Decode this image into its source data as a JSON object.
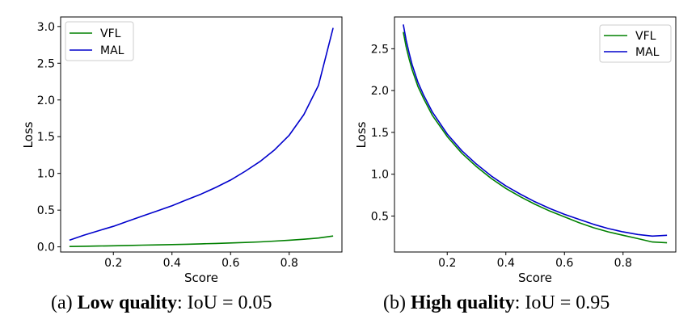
{
  "chart_data": [
    {
      "type": "line",
      "xlabel": "Score",
      "ylabel": "Loss",
      "xlim": [
        0.02,
        0.98
      ],
      "ylim": [
        -0.07,
        3.13
      ],
      "xticks": [
        0.2,
        0.4,
        0.6,
        0.8
      ],
      "xtick_labels": [
        "0.2",
        "0.4",
        "0.6",
        "0.8"
      ],
      "yticks": [
        0.0,
        0.5,
        1.0,
        1.5,
        2.0,
        2.5,
        3.0
      ],
      "ytick_labels": [
        "0.0",
        "0.5",
        "1.0",
        "1.5",
        "2.0",
        "2.5",
        "3.0"
      ],
      "legend_position": "top-left",
      "caption": {
        "prefix": "(a) ",
        "bold": "Low quality",
        "suffix": ": IoU = 0.05"
      },
      "x": [
        0.05,
        0.1,
        0.15,
        0.2,
        0.25,
        0.3,
        0.35,
        0.4,
        0.45,
        0.5,
        0.55,
        0.6,
        0.65,
        0.7,
        0.75,
        0.8,
        0.85,
        0.9,
        0.95
      ],
      "series": [
        {
          "name": "VFL",
          "color": "#008000",
          "values": [
            0.005,
            0.008,
            0.011,
            0.015,
            0.019,
            0.023,
            0.027,
            0.031,
            0.036,
            0.041,
            0.047,
            0.053,
            0.06,
            0.068,
            0.078,
            0.09,
            0.104,
            0.12,
            0.148
          ]
        },
        {
          "name": "MAL",
          "color": "#0000cc",
          "values": [
            0.09,
            0.16,
            0.22,
            0.28,
            0.35,
            0.42,
            0.49,
            0.56,
            0.64,
            0.72,
            0.81,
            0.91,
            1.03,
            1.16,
            1.32,
            1.52,
            1.8,
            2.2,
            2.98
          ]
        }
      ]
    },
    {
      "type": "line",
      "xlabel": "Score",
      "ylabel": "Loss",
      "xlim": [
        0.02,
        0.98
      ],
      "ylim": [
        0.07,
        2.88
      ],
      "xticks": [
        0.2,
        0.4,
        0.6,
        0.8
      ],
      "xtick_labels": [
        "0.2",
        "0.4",
        "0.6",
        "0.8"
      ],
      "yticks": [
        0.5,
        1.0,
        1.5,
        2.0,
        2.5
      ],
      "ytick_labels": [
        "0.5",
        "1.0",
        "1.5",
        "2.0",
        "2.5"
      ],
      "legend_position": "top-right",
      "caption": {
        "prefix": "(b) ",
        "bold": "High quality",
        "suffix": ": IoU = 0.95"
      },
      "x": [
        0.05,
        0.06,
        0.07,
        0.08,
        0.1,
        0.12,
        0.15,
        0.2,
        0.25,
        0.3,
        0.35,
        0.4,
        0.45,
        0.5,
        0.55,
        0.6,
        0.65,
        0.7,
        0.75,
        0.8,
        0.85,
        0.9,
        0.95
      ],
      "series": [
        {
          "name": "VFL",
          "color": "#008000",
          "values": [
            2.7,
            2.52,
            2.38,
            2.25,
            2.05,
            1.9,
            1.7,
            1.45,
            1.25,
            1.09,
            0.95,
            0.83,
            0.73,
            0.64,
            0.56,
            0.49,
            0.42,
            0.36,
            0.31,
            0.27,
            0.23,
            0.19,
            0.18
          ]
        },
        {
          "name": "MAL",
          "color": "#0000cc",
          "values": [
            2.79,
            2.6,
            2.45,
            2.31,
            2.1,
            1.94,
            1.74,
            1.48,
            1.28,
            1.12,
            0.98,
            0.86,
            0.76,
            0.67,
            0.59,
            0.52,
            0.46,
            0.4,
            0.35,
            0.31,
            0.28,
            0.26,
            0.27
          ]
        }
      ]
    }
  ]
}
